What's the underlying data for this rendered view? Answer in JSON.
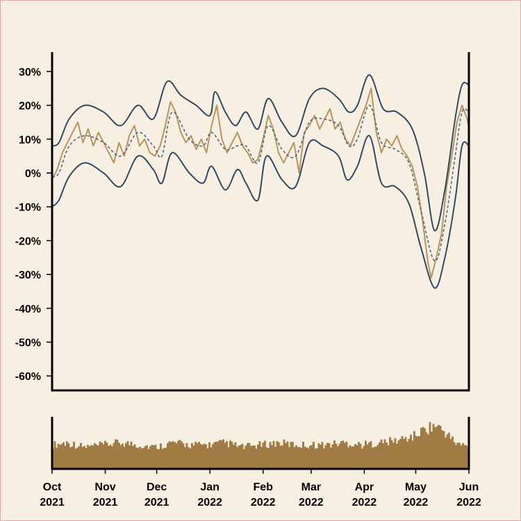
{
  "chart_data": [
    {
      "type": "line",
      "title": "",
      "xlabel": "",
      "ylabel": "",
      "ylim": [
        -65,
        36
      ],
      "y_ticks": [
        30,
        20,
        10,
        0,
        -10,
        -20,
        -30,
        -40,
        -50,
        -60
      ],
      "y_tick_labels": [
        "30%",
        "20%",
        "10%",
        "0%",
        "-10%",
        "-20%",
        "-30%",
        "-40%",
        "-50%",
        "-60%"
      ],
      "x_range": [
        "2021-10-01",
        "2022-06-01"
      ],
      "x_ticks": [
        "2021-10-01",
        "2021-11-01",
        "2021-12-01",
        "2022-01-01",
        "2022-02-01",
        "2022-03-01",
        "2022-04-01",
        "2022-05-01",
        "2022-06-01"
      ],
      "x_tick_labels": [
        [
          "Oct",
          "2021"
        ],
        [
          "Nov",
          "2021"
        ],
        [
          "Dec",
          "2021"
        ],
        [
          "Jan",
          "2022"
        ],
        [
          "Feb",
          "2022"
        ],
        [
          "Mar",
          "2022"
        ],
        [
          "Apr",
          "2022"
        ],
        [
          "May",
          "2022"
        ],
        [
          "Jun",
          "2022"
        ]
      ],
      "grid": false,
      "colors": {
        "price": "#b8945a",
        "band": "#2f4a63",
        "mid": "#4f6680",
        "background": "#f7efe1"
      },
      "series_points": {
        "upper": [
          [
            "2021-10-01",
            8
          ],
          [
            "2021-10-05",
            9
          ],
          [
            "2021-10-11",
            16
          ],
          [
            "2021-10-20",
            20
          ],
          [
            "2021-10-31",
            18
          ],
          [
            "2021-11-10",
            14
          ],
          [
            "2021-11-20",
            20
          ],
          [
            "2021-11-29",
            16
          ],
          [
            "2021-12-07",
            27
          ],
          [
            "2021-12-15",
            23
          ],
          [
            "2021-12-24",
            20
          ],
          [
            "2022-01-01",
            17
          ],
          [
            "2022-01-04",
            24
          ],
          [
            "2022-01-10",
            18
          ],
          [
            "2022-01-16",
            14
          ],
          [
            "2022-01-22",
            18
          ],
          [
            "2022-01-29",
            13
          ],
          [
            "2022-02-04",
            22
          ],
          [
            "2022-02-12",
            15
          ],
          [
            "2022-02-20",
            11
          ],
          [
            "2022-02-28",
            22
          ],
          [
            "2022-03-08",
            25
          ],
          [
            "2022-03-17",
            22
          ],
          [
            "2022-03-23",
            18
          ],
          [
            "2022-03-28",
            20
          ],
          [
            "2022-04-04",
            29
          ],
          [
            "2022-04-12",
            19
          ],
          [
            "2022-04-20",
            18
          ],
          [
            "2022-04-29",
            13
          ],
          [
            "2022-05-06",
            0
          ],
          [
            "2022-05-12",
            -17
          ],
          [
            "2022-05-18",
            -5
          ],
          [
            "2022-05-24",
            16
          ],
          [
            "2022-05-28",
            26
          ],
          [
            "2022-06-01",
            26
          ]
        ],
        "lower": [
          [
            "2021-10-01",
            -10
          ],
          [
            "2021-10-05",
            -8
          ],
          [
            "2021-10-11",
            -1
          ],
          [
            "2021-10-20",
            3
          ],
          [
            "2021-10-31",
            0
          ],
          [
            "2021-11-10",
            -4
          ],
          [
            "2021-11-20",
            5
          ],
          [
            "2021-11-29",
            1
          ],
          [
            "2021-12-04",
            -3
          ],
          [
            "2021-12-10",
            6
          ],
          [
            "2021-12-20",
            0
          ],
          [
            "2021-12-28",
            -3
          ],
          [
            "2022-01-02",
            2
          ],
          [
            "2022-01-10",
            -5
          ],
          [
            "2022-01-17",
            1
          ],
          [
            "2022-01-22",
            -3
          ],
          [
            "2022-01-29",
            -8
          ],
          [
            "2022-02-03",
            5
          ],
          [
            "2022-02-12",
            -2
          ],
          [
            "2022-02-20",
            -4
          ],
          [
            "2022-02-28",
            9
          ],
          [
            "2022-03-08",
            8
          ],
          [
            "2022-03-17",
            5
          ],
          [
            "2022-03-22",
            -2
          ],
          [
            "2022-03-28",
            2
          ],
          [
            "2022-04-04",
            11
          ],
          [
            "2022-04-11",
            -3
          ],
          [
            "2022-04-19",
            -4
          ],
          [
            "2022-04-27",
            -9
          ],
          [
            "2022-05-04",
            -22
          ],
          [
            "2022-05-12",
            -34
          ],
          [
            "2022-05-18",
            -25
          ],
          [
            "2022-05-24",
            -8
          ],
          [
            "2022-05-28",
            8
          ],
          [
            "2022-06-01",
            8
          ]
        ],
        "mid": [
          [
            "2021-10-01",
            -1
          ],
          [
            "2021-10-05",
            0
          ],
          [
            "2021-10-11",
            8
          ],
          [
            "2021-10-20",
            11
          ],
          [
            "2021-10-31",
            9
          ],
          [
            "2021-11-10",
            5
          ],
          [
            "2021-11-20",
            12
          ],
          [
            "2021-11-29",
            8
          ],
          [
            "2021-12-04",
            5
          ],
          [
            "2021-12-10",
            18
          ],
          [
            "2021-12-20",
            10
          ],
          [
            "2021-12-28",
            8
          ],
          [
            "2022-01-02",
            12
          ],
          [
            "2022-01-10",
            7
          ],
          [
            "2022-01-17",
            8
          ],
          [
            "2022-01-22",
            8
          ],
          [
            "2022-01-29",
            3
          ],
          [
            "2022-02-04",
            14
          ],
          [
            "2022-02-12",
            7
          ],
          [
            "2022-02-20",
            5
          ],
          [
            "2022-02-28",
            15
          ],
          [
            "2022-03-08",
            16
          ],
          [
            "2022-03-17",
            14
          ],
          [
            "2022-03-23",
            8
          ],
          [
            "2022-03-28",
            10
          ],
          [
            "2022-04-04",
            20
          ],
          [
            "2022-04-11",
            9
          ],
          [
            "2022-04-19",
            7
          ],
          [
            "2022-04-27",
            3
          ],
          [
            "2022-05-04",
            -11
          ],
          [
            "2022-05-12",
            -26
          ],
          [
            "2022-05-18",
            -15
          ],
          [
            "2022-05-24",
            5
          ],
          [
            "2022-05-28",
            18
          ],
          [
            "2022-06-01",
            18
          ]
        ],
        "price": [
          [
            "2021-10-01",
            -2
          ],
          [
            "2021-10-04",
            1
          ],
          [
            "2021-10-07",
            6
          ],
          [
            "2021-10-10",
            9
          ],
          [
            "2021-10-13",
            12
          ],
          [
            "2021-10-16",
            15
          ],
          [
            "2021-10-19",
            9
          ],
          [
            "2021-10-22",
            13
          ],
          [
            "2021-10-25",
            8
          ],
          [
            "2021-10-28",
            12
          ],
          [
            "2021-10-31",
            9
          ],
          [
            "2021-11-03",
            6
          ],
          [
            "2021-11-06",
            3
          ],
          [
            "2021-11-09",
            9
          ],
          [
            "2021-11-12",
            5
          ],
          [
            "2021-11-15",
            11
          ],
          [
            "2021-11-18",
            14
          ],
          [
            "2021-11-21",
            8
          ],
          [
            "2021-11-24",
            10
          ],
          [
            "2021-11-27",
            6
          ],
          [
            "2021-11-30",
            5
          ],
          [
            "2021-12-03",
            8
          ],
          [
            "2021-12-06",
            14
          ],
          [
            "2021-12-09",
            21
          ],
          [
            "2021-12-12",
            18
          ],
          [
            "2021-12-15",
            12
          ],
          [
            "2021-12-18",
            9
          ],
          [
            "2021-12-21",
            11
          ],
          [
            "2021-12-24",
            7
          ],
          [
            "2021-12-27",
            10
          ],
          [
            "2021-12-30",
            6
          ],
          [
            "2022-01-02",
            14
          ],
          [
            "2022-01-05",
            20
          ],
          [
            "2022-01-08",
            10
          ],
          [
            "2022-01-11",
            6
          ],
          [
            "2022-01-14",
            9
          ],
          [
            "2022-01-17",
            12
          ],
          [
            "2022-01-20",
            8
          ],
          [
            "2022-01-23",
            6
          ],
          [
            "2022-01-26",
            3
          ],
          [
            "2022-01-29",
            4
          ],
          [
            "2022-02-01",
            10
          ],
          [
            "2022-02-04",
            17
          ],
          [
            "2022-02-07",
            13
          ],
          [
            "2022-02-10",
            6
          ],
          [
            "2022-02-13",
            3
          ],
          [
            "2022-02-16",
            6
          ],
          [
            "2022-02-19",
            9
          ],
          [
            "2022-02-22",
            0
          ],
          [
            "2022-02-25",
            12
          ],
          [
            "2022-02-28",
            14
          ],
          [
            "2022-03-03",
            17
          ],
          [
            "2022-03-06",
            13
          ],
          [
            "2022-03-09",
            16
          ],
          [
            "2022-03-12",
            19
          ],
          [
            "2022-03-15",
            13
          ],
          [
            "2022-03-18",
            15
          ],
          [
            "2022-03-21",
            10
          ],
          [
            "2022-03-24",
            8
          ],
          [
            "2022-03-27",
            12
          ],
          [
            "2022-03-30",
            16
          ],
          [
            "2022-04-02",
            20
          ],
          [
            "2022-04-05",
            25
          ],
          [
            "2022-04-08",
            12
          ],
          [
            "2022-04-11",
            6
          ],
          [
            "2022-04-14",
            10
          ],
          [
            "2022-04-17",
            8
          ],
          [
            "2022-04-20",
            11
          ],
          [
            "2022-04-23",
            7
          ],
          [
            "2022-04-26",
            5
          ],
          [
            "2022-04-29",
            2
          ],
          [
            "2022-05-02",
            -4
          ],
          [
            "2022-05-05",
            -14
          ],
          [
            "2022-05-08",
            -26
          ],
          [
            "2022-05-10",
            -31
          ],
          [
            "2022-05-13",
            -25
          ],
          [
            "2022-05-16",
            -18
          ],
          [
            "2022-05-19",
            -4
          ],
          [
            "2022-05-22",
            5
          ],
          [
            "2022-05-25",
            15
          ],
          [
            "2022-05-28",
            20
          ],
          [
            "2022-05-31",
            16
          ],
          [
            "2022-06-01",
            13
          ]
        ]
      },
      "series": [
        {
          "values": "price"
        },
        {
          "values": "upper"
        },
        {
          "values": "mid"
        },
        {
          "values": "lower"
        }
      ]
    },
    {
      "type": "bar",
      "title": "",
      "shares_x_axis_with": 0,
      "values_relative": [
        [
          "2021-10-01",
          0.55
        ],
        [
          "2021-10-10",
          0.6
        ],
        [
          "2021-10-20",
          0.5
        ],
        [
          "2021-10-31",
          0.55
        ],
        [
          "2021-11-10",
          0.6
        ],
        [
          "2021-11-20",
          0.55
        ],
        [
          "2021-11-30",
          0.5
        ],
        [
          "2021-12-10",
          0.6
        ],
        [
          "2021-12-20",
          0.55
        ],
        [
          "2021-12-31",
          0.55
        ],
        [
          "2022-01-10",
          0.6
        ],
        [
          "2022-01-20",
          0.5
        ],
        [
          "2022-01-31",
          0.55
        ],
        [
          "2022-02-10",
          0.6
        ],
        [
          "2022-02-20",
          0.55
        ],
        [
          "2022-02-28",
          0.55
        ],
        [
          "2022-03-10",
          0.55
        ],
        [
          "2022-03-20",
          0.6
        ],
        [
          "2022-03-31",
          0.55
        ],
        [
          "2022-04-10",
          0.6
        ],
        [
          "2022-04-20",
          0.65
        ],
        [
          "2022-04-30",
          0.75
        ],
        [
          "2022-05-06",
          0.9
        ],
        [
          "2022-05-12",
          1.0
        ],
        [
          "2022-05-18",
          0.85
        ],
        [
          "2022-05-24",
          0.6
        ],
        [
          "2022-06-01",
          0.5
        ]
      ]
    }
  ]
}
